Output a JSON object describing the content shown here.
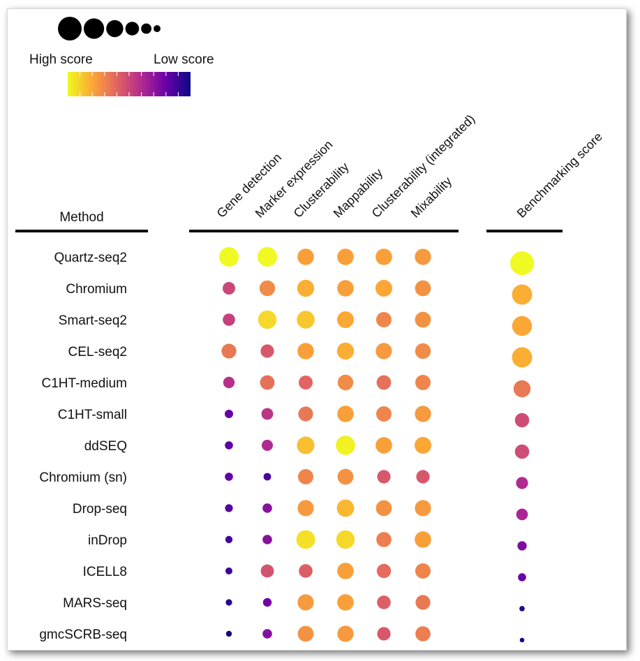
{
  "chart_data": {
    "type": "scatter",
    "legend": {
      "high_label": "High score",
      "low_label": "Low score",
      "colorscale": [
        "#f0f921",
        "#fca636",
        "#e16462",
        "#b12a90",
        "#6a00a8",
        "#0d0887"
      ],
      "size_dots": [
        1.0,
        0.8,
        0.6,
        0.4,
        0.2,
        0.0
      ]
    },
    "method_header": "Method",
    "columns": [
      "Gene detection",
      "Marker expression",
      "Clusterability",
      "Mappability",
      "Clusterability (integrated)",
      "Mixability"
    ],
    "summary_column": "Benchmarking score",
    "methods": [
      "Quartz-seq2",
      "Chromium",
      "Smart-seq2",
      "CEL-seq2",
      "C1HT-medium",
      "C1HT-small",
      "ddSEQ",
      "Chromium (sn)",
      "Drop-seq",
      "inDrop",
      "ICELL8",
      "MARS-seq",
      "gmcSCRB-seq"
    ],
    "scores": [
      [
        1.0,
        1.0,
        0.78,
        0.78,
        0.78,
        0.76
      ],
      [
        0.5,
        0.72,
        0.82,
        0.78,
        0.8,
        0.74
      ],
      [
        0.48,
        0.92,
        0.88,
        0.8,
        0.7,
        0.74
      ],
      [
        0.66,
        0.56,
        0.78,
        0.82,
        0.76,
        0.72
      ],
      [
        0.42,
        0.64,
        0.6,
        0.72,
        0.64,
        0.7
      ],
      [
        0.2,
        0.44,
        0.66,
        0.78,
        0.7,
        0.76
      ],
      [
        0.18,
        0.4,
        0.86,
        0.98,
        0.78,
        0.8
      ],
      [
        0.18,
        0.14,
        0.7,
        0.74,
        0.56,
        0.56
      ],
      [
        0.16,
        0.28,
        0.76,
        0.84,
        0.74,
        0.76
      ],
      [
        0.12,
        0.28,
        0.94,
        0.92,
        0.68,
        0.78
      ],
      [
        0.1,
        0.54,
        0.58,
        0.78,
        0.62,
        0.7
      ],
      [
        0.06,
        0.22,
        0.76,
        0.78,
        0.58,
        0.66
      ],
      [
        0.02,
        0.28,
        0.74,
        0.76,
        0.56,
        0.68
      ]
    ],
    "benchmarking_score": [
      1.0,
      0.82,
      0.8,
      0.82,
      0.66,
      0.52,
      0.52,
      0.4,
      0.38,
      0.26,
      0.2,
      0.06,
      0.02
    ]
  }
}
